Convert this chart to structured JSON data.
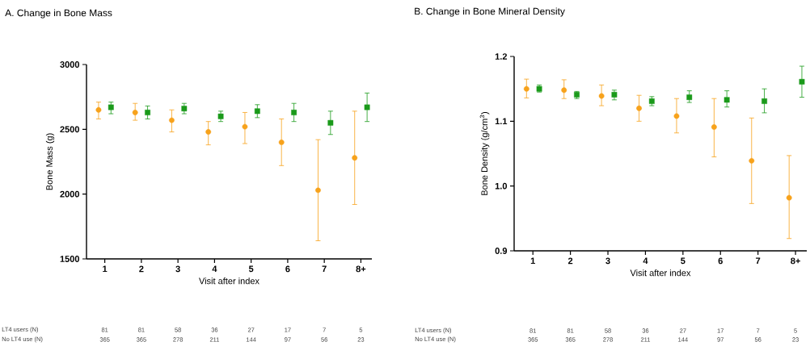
{
  "chart_data": [
    {
      "type": "scatter",
      "title": "A. Change in Bone Mass",
      "xlabel": "Visit after index",
      "ylabel": "Bone Mass (g)",
      "categories": [
        "1",
        "2",
        "3",
        "4",
        "5",
        "6",
        "7",
        "8+"
      ],
      "ylim": [
        1500,
        3000
      ],
      "yticks": [
        1500,
        2000,
        2500,
        3000
      ],
      "grid": false,
      "series": [
        {
          "color": "#f7a21b",
          "marker": "circle",
          "values": [
            2650,
            2630,
            2570,
            2480,
            2520,
            2400,
            2030,
            2280
          ],
          "errors": [
            [
              2580,
              2710
            ],
            [
              2570,
              2700
            ],
            [
              2480,
              2650
            ],
            [
              2380,
              2560
            ],
            [
              2390,
              2630
            ],
            [
              2220,
              2580
            ],
            [
              1640,
              2420
            ],
            [
              1920,
              2640
            ]
          ]
        },
        {
          "color": "#1a9a1a",
          "marker": "square",
          "values": [
            2670,
            2630,
            2660,
            2600,
            2640,
            2630,
            2550,
            2670
          ],
          "errors": [
            [
              2620,
              2710
            ],
            [
              2580,
              2680
            ],
            [
              2620,
              2700
            ],
            [
              2560,
              2640
            ],
            [
              2590,
              2690
            ],
            [
              2560,
              2700
            ],
            [
              2460,
              2640
            ],
            [
              2560,
              2780
            ]
          ]
        }
      ],
      "annotations": [
        "LT4 users (N)",
        "81",
        "81",
        "58",
        "36",
        "27",
        "17",
        "7",
        "5",
        "No LT4 use (N)",
        "365",
        "365",
        "278",
        "211",
        "144",
        "97",
        "56",
        "23"
      ]
    },
    {
      "type": "scatter",
      "title": "B. Change in Bone Mineral Density",
      "xlabel": "Visit after index",
      "ylabel": "Bone Density (g/cm$^{3}$)",
      "categories": [
        "1",
        "2",
        "3",
        "4",
        "5",
        "6",
        "7",
        "8+"
      ],
      "ylim": [
        0.9,
        1.2
      ],
      "yticks": [
        {
          "value": 0.9,
          "label": "0.9"
        },
        {
          "value": 1.0,
          "label": "1.0"
        },
        {
          "value": 1.1,
          "label": "1.1"
        },
        {
          "value": 1.2,
          "label": "1.2"
        }
      ],
      "grid": false,
      "series": [
        {
          "color": "#f7a21b",
          "marker": "circle",
          "values": [
            1.15,
            1.148,
            1.139,
            1.12,
            1.108,
            1.091,
            1.039,
            0.982
          ],
          "errors": [
            [
              1.136,
              1.165
            ],
            [
              1.135,
              1.164
            ],
            [
              1.124,
              1.156
            ],
            [
              1.1,
              1.14
            ],
            [
              1.082,
              1.135
            ],
            [
              1.045,
              1.135
            ],
            [
              0.973,
              1.105
            ],
            [
              0.919,
              1.047
            ]
          ]
        },
        {
          "color": "#1a9a1a",
          "marker": "square",
          "values": [
            1.15,
            1.141,
            1.141,
            1.131,
            1.137,
            1.133,
            1.131,
            1.161
          ],
          "errors": [
            [
              1.145,
              1.156
            ],
            [
              1.135,
              1.146
            ],
            [
              1.133,
              1.148
            ],
            [
              1.124,
              1.138
            ],
            [
              1.129,
              1.147
            ],
            [
              1.122,
              1.147
            ],
            [
              1.113,
              1.15
            ],
            [
              1.137,
              1.185
            ]
          ]
        }
      ],
      "annotations": [
        "LT4 users (N)",
        "81",
        "81",
        "58",
        "36",
        "27",
        "17",
        "7",
        "5",
        "No LT4 use (N)",
        "365",
        "365",
        "278",
        "211",
        "144",
        "97",
        "56",
        "23"
      ]
    }
  ]
}
